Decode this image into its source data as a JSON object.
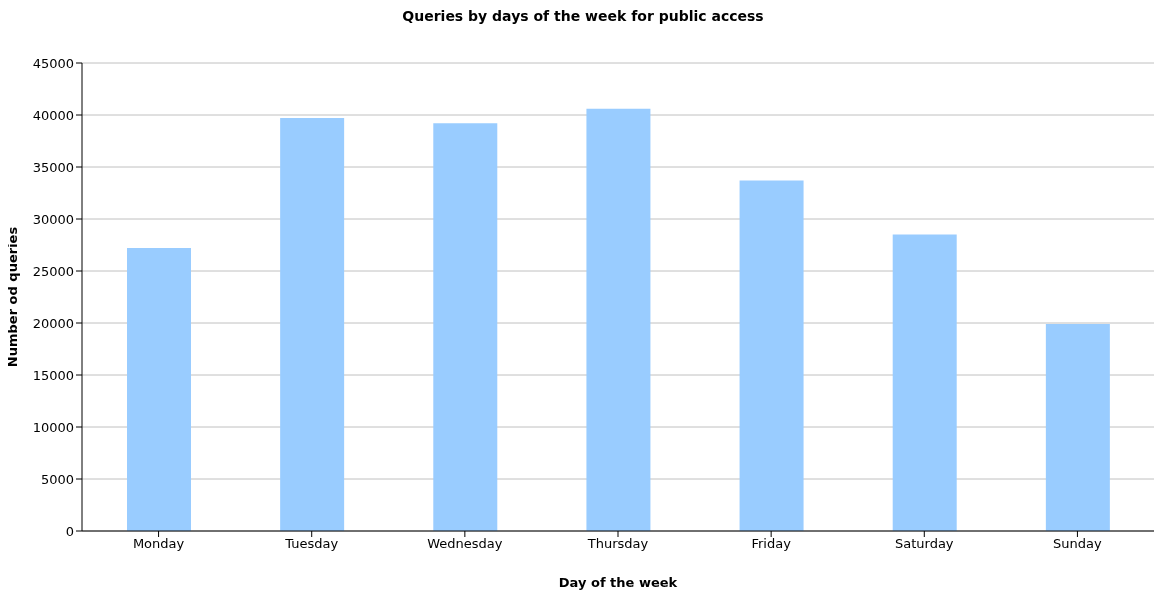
{
  "chart_data": {
    "type": "bar",
    "title": "Queries by days of the week for public access",
    "xlabel": "Day of the week",
    "ylabel": "Number od queries",
    "categories": [
      "Monday",
      "Tuesday",
      "Wednesday",
      "Thursday",
      "Friday",
      "Saturday",
      "Sunday"
    ],
    "values": [
      27200,
      39700,
      39200,
      40600,
      33700,
      28500,
      19900
    ],
    "color": "#99ccff",
    "ylim": [
      0,
      45000
    ],
    "yticks": [
      0,
      5000,
      10000,
      15000,
      20000,
      25000,
      30000,
      35000,
      40000,
      45000
    ],
    "grid": "y"
  }
}
